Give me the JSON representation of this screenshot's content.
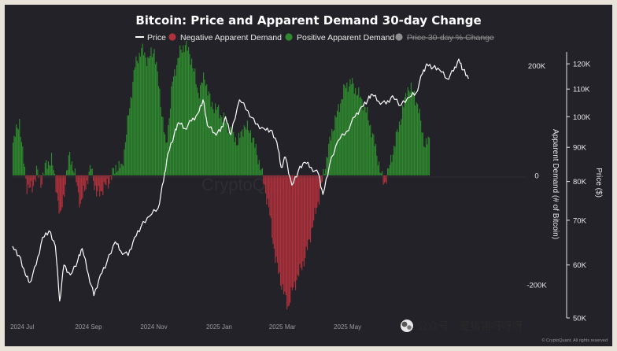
{
  "chart_data": {
    "type": "bar+line",
    "title": "Bitcoin: Price and Apparent Demand 30-day Change",
    "legend": {
      "placement": "top-center",
      "items": [
        {
          "label": "Price",
          "marker": "line",
          "color": "#ffffff",
          "active": true
        },
        {
          "label": "Negative Apparent Demand",
          "marker": "dot",
          "color": "#b0313c",
          "active": true
        },
        {
          "label": "Positive Apparent Demand",
          "marker": "dot",
          "color": "#2f8a2f",
          "active": true
        },
        {
          "label": "Price 30-day % Change",
          "marker": "dot",
          "color": "#8f8f8f",
          "active": false
        }
      ]
    },
    "x_axis": {
      "start": "2024-06-22",
      "end": "2025-06-10",
      "ticks": [
        {
          "date": "2024-07-01",
          "label": "2024 Jul"
        },
        {
          "date": "2024-09-01",
          "label": "2024 Sep"
        },
        {
          "date": "2024-11-01",
          "label": "2024 Nov"
        },
        {
          "date": "2025-01-01",
          "label": "2025 Jan"
        },
        {
          "date": "2025-03-01",
          "label": "2025 Mar"
        },
        {
          "date": "2025-05-01",
          "label": "2025 May"
        }
      ]
    },
    "demand_axis": {
      "label": "Apparent Demand (# of Bitcoin)",
      "unit": "BTC",
      "range": [
        -260000,
        225000
      ],
      "ticks": [
        {
          "value": 200000,
          "label": "200K"
        },
        {
          "value": 0,
          "label": "0"
        },
        {
          "value": -200000,
          "label": "-200K"
        }
      ]
    },
    "price_axis": {
      "label": "Price ($)",
      "scale": "log",
      "range": [
        50000,
        125000
      ],
      "ticks": [
        {
          "value": 120000,
          "label": "120K"
        },
        {
          "value": 110000,
          "label": "110K"
        },
        {
          "value": 100000,
          "label": "100K"
        },
        {
          "value": 90000,
          "label": "90K"
        },
        {
          "value": 80000,
          "label": "80K"
        },
        {
          "value": 70000,
          "label": "70K"
        },
        {
          "value": 60000,
          "label": "60K"
        },
        {
          "value": 50000,
          "label": "50K"
        }
      ]
    },
    "demand_series": {
      "name": "Apparent Demand",
      "points": [
        [
          "2024-06-22",
          60000
        ],
        [
          "2024-06-28",
          100000
        ],
        [
          "2024-07-01",
          40000
        ],
        [
          "2024-07-05",
          -20000
        ],
        [
          "2024-07-10",
          -25000
        ],
        [
          "2024-07-14",
          10000
        ],
        [
          "2024-07-18",
          -15000
        ],
        [
          "2024-07-22",
          15000
        ],
        [
          "2024-07-28",
          30000
        ],
        [
          "2024-08-02",
          -30000
        ],
        [
          "2024-08-05",
          -80000
        ],
        [
          "2024-08-08",
          -40000
        ],
        [
          "2024-08-14",
          40000
        ],
        [
          "2024-08-20",
          -10000
        ],
        [
          "2024-08-24",
          -55000
        ],
        [
          "2024-08-28",
          -25000
        ],
        [
          "2024-09-03",
          15000
        ],
        [
          "2024-09-08",
          -35000
        ],
        [
          "2024-09-14",
          -25000
        ],
        [
          "2024-09-20",
          -10000
        ],
        [
          "2024-09-26",
          15000
        ],
        [
          "2024-10-02",
          15000
        ],
        [
          "2024-10-08",
          110000
        ],
        [
          "2024-10-14",
          200000
        ],
        [
          "2024-10-20",
          230000
        ],
        [
          "2024-10-26",
          210000
        ],
        [
          "2024-11-01",
          230000
        ],
        [
          "2024-11-06",
          150000
        ],
        [
          "2024-11-12",
          50000
        ],
        [
          "2024-11-18",
          170000
        ],
        [
          "2024-11-24",
          220000
        ],
        [
          "2024-11-30",
          240000
        ],
        [
          "2024-12-06",
          210000
        ],
        [
          "2024-12-12",
          150000
        ],
        [
          "2024-12-18",
          180000
        ],
        [
          "2024-12-24",
          130000
        ],
        [
          "2024-12-30",
          120000
        ],
        [
          "2025-01-06",
          100000
        ],
        [
          "2025-01-12",
          80000
        ],
        [
          "2025-01-18",
          60000
        ],
        [
          "2025-01-24",
          90000
        ],
        [
          "2025-01-30",
          80000
        ],
        [
          "2025-02-05",
          40000
        ],
        [
          "2025-02-10",
          0
        ],
        [
          "2025-02-16",
          -60000
        ],
        [
          "2025-02-22",
          -150000
        ],
        [
          "2025-02-28",
          -200000
        ],
        [
          "2025-03-06",
          -240000
        ],
        [
          "2025-03-10",
          -210000
        ],
        [
          "2025-03-16",
          -180000
        ],
        [
          "2025-03-22",
          -150000
        ],
        [
          "2025-03-28",
          -100000
        ],
        [
          "2025-04-04",
          -40000
        ],
        [
          "2025-04-10",
          20000
        ],
        [
          "2025-04-16",
          80000
        ],
        [
          "2025-04-22",
          120000
        ],
        [
          "2025-04-28",
          160000
        ],
        [
          "2025-05-04",
          170000
        ],
        [
          "2025-05-10",
          150000
        ],
        [
          "2025-05-16",
          130000
        ],
        [
          "2025-05-22",
          90000
        ],
        [
          "2025-05-28",
          40000
        ],
        [
          "2025-06-01",
          0
        ],
        [
          "2025-06-04",
          -15000
        ],
        [
          "2025-06-08",
          10000
        ],
        [
          "2025-06-14",
          60000
        ],
        [
          "2025-06-20",
          110000
        ],
        [
          "2025-06-26",
          160000
        ],
        [
          "2025-07-02",
          150000
        ],
        [
          "2025-07-08",
          100000
        ],
        [
          "2025-07-12",
          50000
        ],
        [
          "2025-07-16",
          70000
        ]
      ]
    },
    "price_series": {
      "name": "Price",
      "points": [
        [
          "2024-06-22",
          64000
        ],
        [
          "2024-06-28",
          62000
        ],
        [
          "2024-07-04",
          58000
        ],
        [
          "2024-07-08",
          56500
        ],
        [
          "2024-07-14",
          60000
        ],
        [
          "2024-07-20",
          66000
        ],
        [
          "2024-07-26",
          67500
        ],
        [
          "2024-08-01",
          64000
        ],
        [
          "2024-08-05",
          53000
        ],
        [
          "2024-08-09",
          60000
        ],
        [
          "2024-08-15",
          58000
        ],
        [
          "2024-08-22",
          61000
        ],
        [
          "2024-08-26",
          63500
        ],
        [
          "2024-09-01",
          58000
        ],
        [
          "2024-09-06",
          54000
        ],
        [
          "2024-09-12",
          58000
        ],
        [
          "2024-09-18",
          60500
        ],
        [
          "2024-09-26",
          65000
        ],
        [
          "2024-10-01",
          63000
        ],
        [
          "2024-10-08",
          62000
        ],
        [
          "2024-10-14",
          66000
        ],
        [
          "2024-10-20",
          68500
        ],
        [
          "2024-10-28",
          71000
        ],
        [
          "2024-11-05",
          73000
        ],
        [
          "2024-11-10",
          80000
        ],
        [
          "2024-11-14",
          88000
        ],
        [
          "2024-11-20",
          94000
        ],
        [
          "2024-11-24",
          98000
        ],
        [
          "2024-11-30",
          96000
        ],
        [
          "2024-12-06",
          98500
        ],
        [
          "2024-12-12",
          101000
        ],
        [
          "2024-12-17",
          106000
        ],
        [
          "2024-12-21",
          97000
        ],
        [
          "2024-12-28",
          94500
        ],
        [
          "2025-01-02",
          95000
        ],
        [
          "2025-01-07",
          100000
        ],
        [
          "2025-01-12",
          94000
        ],
        [
          "2025-01-20",
          106000
        ],
        [
          "2025-01-28",
          102000
        ],
        [
          "2025-02-04",
          97500
        ],
        [
          "2025-02-12",
          96000
        ],
        [
          "2025-02-18",
          95500
        ],
        [
          "2025-02-24",
          91500
        ],
        [
          "2025-02-28",
          84000
        ],
        [
          "2025-03-04",
          87000
        ],
        [
          "2025-03-10",
          79000
        ],
        [
          "2025-03-16",
          83000
        ],
        [
          "2025-03-22",
          85500
        ],
        [
          "2025-03-28",
          84000
        ],
        [
          "2025-04-04",
          82000
        ],
        [
          "2025-04-08",
          76500
        ],
        [
          "2025-04-14",
          84500
        ],
        [
          "2025-04-22",
          92000
        ],
        [
          "2025-04-30",
          95000
        ],
        [
          "2025-05-08",
          100000
        ],
        [
          "2025-05-14",
          103500
        ],
        [
          "2025-05-20",
          106000
        ],
        [
          "2025-05-24",
          108000
        ],
        [
          "2025-05-30",
          105500
        ],
        [
          "2025-06-06",
          104500
        ],
        [
          "2025-06-12",
          107500
        ],
        [
          "2025-06-20",
          104000
        ],
        [
          "2025-06-28",
          107000
        ],
        [
          "2025-07-04",
          108500
        ],
        [
          "2025-07-10",
          116000
        ],
        [
          "2025-07-14",
          120000
        ],
        [
          "2025-07-20",
          118500
        ],
        [
          "2025-07-26",
          117500
        ],
        [
          "2025-08-02",
          114000
        ],
        [
          "2025-08-08",
          117000
        ],
        [
          "2025-08-13",
          122000
        ],
        [
          "2025-08-17",
          117500
        ],
        [
          "2025-08-22",
          114000
        ]
      ]
    }
  },
  "watermark": "CryptoQuant",
  "credit": "© CryptoQuant. All rights reserved",
  "overlay": {
    "badge": "公众号 · 是猪猪呀呀呀"
  },
  "colors": {
    "background": "#222228",
    "outer": "#e9e4da",
    "positive": "#2f8a2f",
    "negative": "#b0313c",
    "price": "#ffffff",
    "axis_text": "#e6e6e6"
  }
}
